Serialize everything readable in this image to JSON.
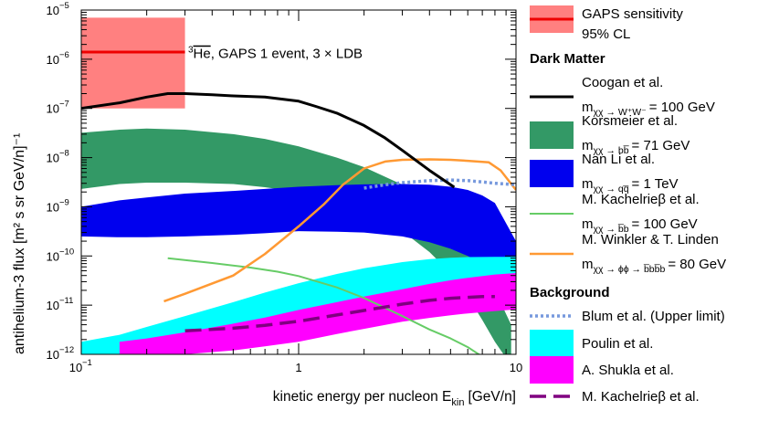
{
  "chart_data": {
    "type": "line",
    "title": "",
    "xlabel": "kinetic energy per nucleon E",
    "xlabel_sub": "kin",
    "xlabel_unit": "[GeV/n]",
    "ylabel": "antihelium-3 flux [m² s sr GeV/n]⁻¹",
    "xscale": "log",
    "yscale": "log",
    "xlim": [
      0.1,
      10
    ],
    "ylim": [
      1e-12,
      1e-05
    ],
    "x_ticks": [
      {
        "value": 0.1,
        "base": "10",
        "exp": "−1"
      },
      {
        "value": 1,
        "label": "1"
      },
      {
        "value": 10,
        "label": "10"
      }
    ],
    "y_ticks": [
      {
        "value": 1e-12,
        "exp": "−12"
      },
      {
        "value": 1e-11,
        "exp": "−11"
      },
      {
        "value": 1e-10,
        "exp": "−10"
      },
      {
        "value": 1e-09,
        "exp": "−9"
      },
      {
        "value": 1e-08,
        "exp": "−8"
      },
      {
        "value": 1e-07,
        "exp": "−7"
      },
      {
        "value": 1e-06,
        "exp": "−6"
      },
      {
        "value": 1e-05,
        "exp": "−5"
      }
    ],
    "annotation": {
      "isotope": "He",
      "mass": "3",
      "text": ", GAPS 1 event, 3 × LDB",
      "x": 0.31,
      "y": 1.3e-06
    },
    "gaps": {
      "name": "GAPS sensitivity",
      "name2": "95% CL",
      "x_range": [
        0.1,
        0.3
      ],
      "band": [
        1e-07,
        7e-06
      ],
      "value": 1.4e-06,
      "color": "#ff8080",
      "line_color": "#ee0000"
    },
    "series": [
      {
        "id": "korsmeier",
        "kind": "band",
        "color": "#339966",
        "x": [
          0.1,
          0.15,
          0.2,
          0.3,
          0.5,
          0.7,
          1,
          1.5,
          2,
          3,
          4,
          5,
          6,
          7,
          8,
          9.5
        ],
        "upper": [
          3.2e-08,
          3.7e-08,
          3.9e-08,
          3.7e-08,
          3e-08,
          2.4e-08,
          1.7e-08,
          1e-08,
          6.4e-09,
          2.8e-09,
          1.3e-09,
          5.5e-10,
          2.2e-10,
          7e-11,
          2e-11,
          4e-12
        ],
        "lower": [
          2.3e-09,
          2.9e-09,
          3.1e-09,
          3.1e-09,
          2.9e-09,
          2.5e-09,
          2e-09,
          1.35e-09,
          8e-10,
          3.2e-10,
          1.2e-10,
          4.5e-11,
          1.5e-11,
          5e-12,
          1.8e-12,
          6e-13
        ]
      },
      {
        "id": "nanli",
        "kind": "band",
        "color": "#0000ee",
        "x": [
          0.1,
          0.15,
          0.2,
          0.3,
          0.5,
          0.7,
          1,
          1.5,
          2,
          3,
          4,
          5,
          6,
          7,
          8,
          10
        ],
        "upper": [
          1e-09,
          1.35e-09,
          1.55e-09,
          1.85e-09,
          2.1e-09,
          2.3e-09,
          2.55e-09,
          2.75e-09,
          2.85e-09,
          2.9e-09,
          2.8e-09,
          2.55e-09,
          2.2e-09,
          1.7e-09,
          1.2e-09,
          2e-10
        ],
        "lower": [
          2.5e-10,
          2.4e-10,
          2.4e-10,
          2.5e-10,
          2.7e-10,
          2.9e-10,
          3.2e-10,
          3.1e-10,
          3e-10,
          2.5e-10,
          1.9e-10,
          1.4e-10,
          1e-10,
          7e-11,
          4.5e-11,
          2e-11
        ]
      },
      {
        "id": "poulin",
        "kind": "band",
        "color": "#00ffff",
        "x": [
          0.1,
          0.15,
          0.2,
          0.3,
          0.5,
          0.7,
          1,
          1.5,
          2,
          3,
          4,
          5,
          6,
          8,
          10
        ],
        "upper": [
          1.8e-12,
          2.5e-12,
          3.6e-12,
          6e-12,
          1.15e-11,
          1.8e-11,
          2.8e-11,
          4.3e-11,
          5.6e-11,
          7.5e-11,
          8.6e-11,
          9.2e-11,
          9.5e-11,
          9.6e-11,
          9.6e-11
        ],
        "lower": [
          1e-12,
          1e-12,
          1.1e-12,
          1.5e-12,
          2.7e-12,
          4.2e-12,
          6.2e-12,
          9.5e-12,
          1.2e-11,
          1.7e-11,
          2e-11,
          2.2e-11,
          2.3e-11,
          2.4e-11,
          2.5e-11
        ]
      },
      {
        "id": "shukla",
        "kind": "band",
        "color": "#ff00ff",
        "x": [
          0.15,
          0.2,
          0.3,
          0.5,
          0.7,
          1,
          1.5,
          2,
          3,
          4,
          5,
          6,
          8,
          10
        ],
        "upper": [
          1.8e-12,
          2.1e-12,
          2.8e-12,
          4.2e-12,
          5.6e-12,
          8e-12,
          1.15e-11,
          1.5e-11,
          2.1e-11,
          2.7e-11,
          3.2e-11,
          3.6e-11,
          4.2e-11,
          4.5e-11
        ],
        "lower": [
          9e-13,
          9e-13,
          1e-12,
          1.2e-12,
          1.45e-12,
          1.8e-12,
          2.6e-12,
          3.3e-12,
          4.6e-12,
          5.5e-12,
          6.2e-12,
          6.8e-12,
          7.6e-12,
          8.2e-12
        ]
      },
      {
        "id": "coogan",
        "kind": "line",
        "color": "#000000",
        "width": 3,
        "x": [
          0.1,
          0.15,
          0.2,
          0.25,
          0.3,
          0.4,
          0.5,
          0.7,
          1,
          1.2,
          1.5,
          2,
          2.5,
          3,
          4,
          5.2
        ],
        "y": [
          1e-07,
          1.3e-07,
          1.7e-07,
          2e-07,
          2e-07,
          1.9e-07,
          1.8e-07,
          1.7e-07,
          1.4e-07,
          1.1e-07,
          8e-08,
          4.5e-08,
          2.5e-08,
          1.4e-08,
          5.5e-09,
          2.5e-09
        ]
      },
      {
        "id": "kach_dm",
        "kind": "line",
        "color": "#66cc66",
        "width": 2,
        "x": [
          0.25,
          0.4,
          0.6,
          0.8,
          1,
          1.5,
          2,
          3,
          4,
          5,
          6,
          7
        ],
        "y": [
          9e-11,
          7.2e-11,
          5.8e-11,
          4.8e-11,
          3.9e-11,
          2.3e-11,
          1.4e-11,
          6e-12,
          3.2e-12,
          2.1e-12,
          1.4e-12,
          9e-13
        ]
      },
      {
        "id": "winkler",
        "kind": "line",
        "color": "#ff9933",
        "width": 2.5,
        "x": [
          0.24,
          0.3,
          0.5,
          0.7,
          1,
          1.3,
          1.6,
          2,
          2.5,
          3,
          4,
          5,
          6,
          7.5,
          8.5,
          10
        ],
        "y": [
          1.2e-11,
          1.7e-11,
          4e-11,
          1.1e-10,
          4e-10,
          1.1e-09,
          2.8e-09,
          6e-09,
          8.3e-09,
          9e-09,
          9.2e-09,
          9e-09,
          8.6e-09,
          8e-09,
          5.5e-09,
          2.2e-09
        ]
      },
      {
        "id": "blum",
        "kind": "line",
        "color": "#7799dd",
        "width": 3.5,
        "dash": "3 3",
        "x": [
          2,
          2.5,
          3,
          4,
          5,
          6,
          7,
          8,
          9,
          10
        ],
        "y": [
          2.4e-09,
          2.8e-09,
          3.1e-09,
          3.4e-09,
          3.5e-09,
          3.4e-09,
          3.2e-09,
          3e-09,
          2.9e-09,
          2.8e-09
        ]
      },
      {
        "id": "kach_bg",
        "kind": "line",
        "color": "#800080",
        "width": 3.5,
        "dash": "18 8",
        "x": [
          0.3,
          0.5,
          0.7,
          1,
          1.5,
          2,
          3,
          4,
          5,
          7,
          8
        ],
        "y": [
          3e-12,
          3.4e-12,
          3.9e-12,
          4.7e-12,
          6.3e-12,
          7.8e-12,
          1.05e-11,
          1.25e-11,
          1.38e-11,
          1.5e-11,
          1.5e-11
        ]
      }
    ],
    "legend": {
      "position": "right",
      "gaps_label": [
        "GAPS sensitivity",
        "95% CL"
      ],
      "header_dm": "Dark Matter",
      "header_bg": "Background",
      "entries": [
        {
          "id": "coogan",
          "name": "Coogan et al.",
          "channel": "χχ → W⁺W⁻",
          "value": "= 100 GeV"
        },
        {
          "id": "korsmeier",
          "name": "Korsmeier et al.",
          "channel": "χχ → bb̅",
          "value": "= 71 GeV"
        },
        {
          "id": "nanli",
          "name": "Nan Li et al.",
          "channel": "χχ → qq̅",
          "value": "= 1 TeV"
        },
        {
          "id": "kach_dm",
          "name": "M. Kachelrieβ et al.",
          "channel": "χχ → b̅b",
          "value": "= 100 GeV"
        },
        {
          "id": "winkler",
          "name": "M. Winkler & T. Linden",
          "channel": "χχ → ϕϕ → b̅bb̅b",
          "value": "= 80 GeV"
        },
        {
          "id": "blum",
          "name": "Blum et al. (Upper limit)"
        },
        {
          "id": "poulin",
          "name": "Poulin et al."
        },
        {
          "id": "shukla",
          "name": "A. Shukla et al."
        },
        {
          "id": "kach_bg",
          "name": "M. Kachelrieβ et al."
        }
      ]
    }
  }
}
